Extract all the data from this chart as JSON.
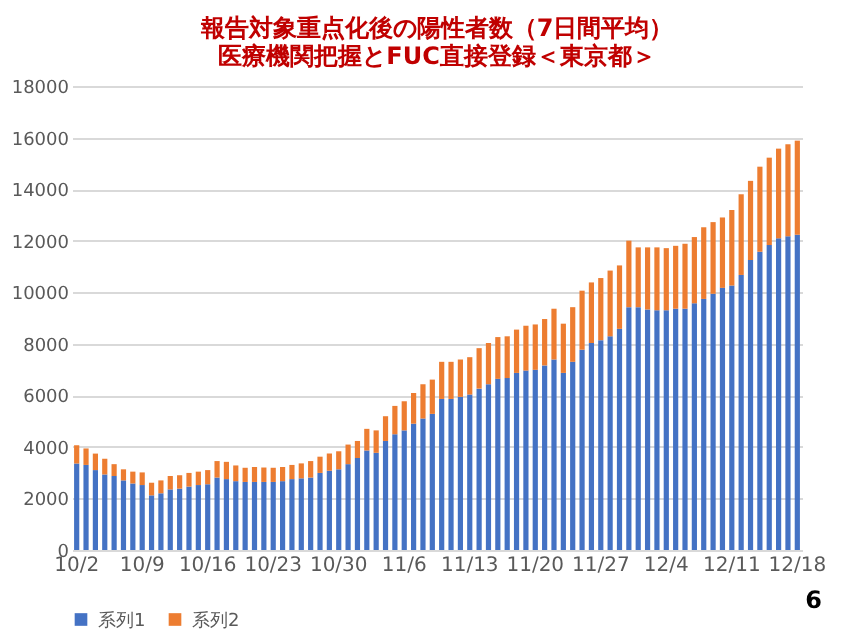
{
  "chart_data": {
    "type": "bar",
    "stacked": true,
    "title": [
      "報告対象重点化後の陽性者数（7日間平均）",
      "医療機関把握とFUC直接登録＜東京都＞"
    ],
    "categories": [
      "10/2",
      null,
      null,
      null,
      null,
      null,
      null,
      "10/9",
      null,
      null,
      null,
      null,
      null,
      null,
      "10/16",
      null,
      null,
      null,
      null,
      null,
      null,
      "10/23",
      null,
      null,
      null,
      null,
      null,
      null,
      "10/30",
      null,
      null,
      null,
      null,
      null,
      null,
      "11/6",
      null,
      null,
      null,
      null,
      null,
      null,
      "11/13",
      null,
      null,
      null,
      null,
      null,
      null,
      "11/20",
      null,
      null,
      null,
      null,
      null,
      null,
      "11/27",
      null,
      null,
      null,
      null,
      null,
      null,
      "12/4",
      null,
      null,
      null,
      null,
      null,
      null,
      "12/11",
      null,
      null,
      null,
      null,
      null,
      null,
      "12/18"
    ],
    "series": [
      {
        "name": "系列1",
        "color": "#4472c4",
        "values": [
          3360,
          3300,
          3100,
          2930,
          2870,
          2700,
          2580,
          2520,
          2120,
          2200,
          2350,
          2380,
          2460,
          2520,
          2550,
          2810,
          2750,
          2670,
          2640,
          2640,
          2640,
          2640,
          2670,
          2750,
          2780,
          2810,
          2990,
          3070,
          3130,
          3330,
          3570,
          3860,
          3770,
          4230,
          4490,
          4640,
          4900,
          5100,
          5280,
          5860,
          5860,
          5940,
          6030,
          6260,
          6430,
          6640,
          6670,
          6870,
          6960,
          6990,
          7160,
          7390,
          6870,
          7300,
          7770,
          8030,
          8140,
          8290,
          8580,
          9420,
          9420,
          9330,
          9300,
          9300,
          9360,
          9360,
          9570,
          9740,
          9940,
          10170,
          10260,
          10670,
          11250,
          11570,
          11830,
          12090,
          12170,
          12230
        ]
      },
      {
        "name": "系列2",
        "color": "#ed7d31",
        "values": [
          700,
          640,
          640,
          610,
          460,
          430,
          460,
          490,
          490,
          500,
          520,
          520,
          530,
          520,
          550,
          640,
          670,
          610,
          550,
          580,
          560,
          550,
          550,
          550,
          580,
          640,
          630,
          670,
          700,
          760,
          660,
          840,
          870,
          960,
          1100,
          1130,
          1190,
          1330,
          1330,
          1440,
          1440,
          1450,
          1450,
          1570,
          1600,
          1620,
          1620,
          1680,
          1740,
          1760,
          1800,
          1970,
          1910,
          2120,
          2290,
          2350,
          2410,
          2550,
          2460,
          2580,
          2320,
          2410,
          2440,
          2410,
          2440,
          2520,
          2570,
          2780,
          2780,
          2730,
          2930,
          3130,
          3070,
          3300,
          3390,
          3480,
          3570,
          3650
        ]
      }
    ],
    "ylim": [
      0,
      18000
    ],
    "yticks": [
      0,
      2000,
      4000,
      6000,
      8000,
      10000,
      12000,
      14000,
      16000,
      18000
    ],
    "grid": "y",
    "legend": "bottom",
    "annotations": [
      "6"
    ]
  }
}
